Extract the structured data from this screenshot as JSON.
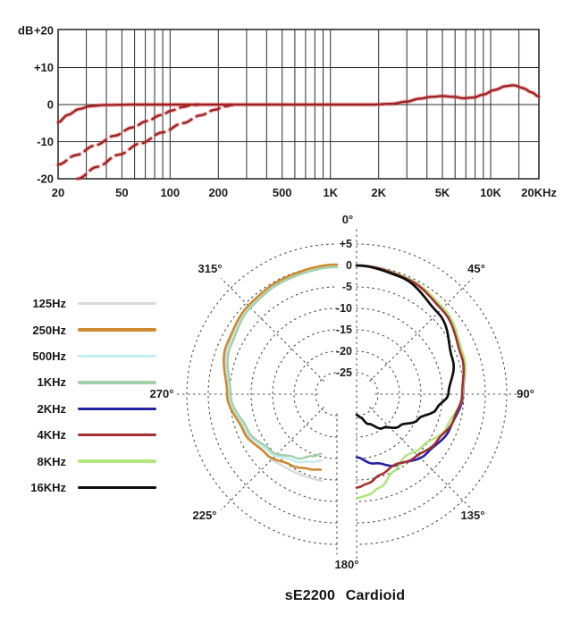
{
  "page": {
    "background": "#ffffff"
  },
  "chart_data": [
    {
      "id": "frequency-response",
      "type": "line",
      "x_scale": "log",
      "x_range_hz": [
        20,
        20000
      ],
      "y_range_db": [
        -20,
        20
      ],
      "grid": true,
      "y_axis_unit_label": "dB",
      "line_color": "#9f2024",
      "y_ticks": [
        {
          "label": "+20",
          "db": 20
        },
        {
          "label": "+10",
          "db": 10
        },
        {
          "label": "0",
          "db": 0
        },
        {
          "label": "-10",
          "db": -10
        },
        {
          "label": "-20",
          "db": -20
        }
      ],
      "x_ticks": [
        {
          "label": "20",
          "hz": 20
        },
        {
          "label": "50",
          "hz": 50
        },
        {
          "label": "100",
          "hz": 100
        },
        {
          "label": "200",
          "hz": 200
        },
        {
          "label": "500",
          "hz": 500
        },
        {
          "label": "1K",
          "hz": 1000
        },
        {
          "label": "2K",
          "hz": 2000
        },
        {
          "label": "5K",
          "hz": 5000
        },
        {
          "label": "10K",
          "hz": 10000
        },
        {
          "label": "20KHz",
          "hz": 20000
        }
      ],
      "x_gridlines_hz": [
        20,
        30,
        40,
        50,
        60,
        70,
        80,
        90,
        100,
        200,
        300,
        400,
        500,
        600,
        700,
        800,
        900,
        1000,
        2000,
        3000,
        4000,
        5000,
        6000,
        7000,
        8000,
        9000,
        10000,
        15000,
        20000
      ],
      "series": [
        {
          "name": "main frequency response",
          "style": "solid",
          "points_hz_db": [
            [
              20,
              -4.8
            ],
            [
              23,
              -2.8
            ],
            [
              27,
              -1.2
            ],
            [
              32,
              -0.4
            ],
            [
              40,
              -0.1
            ],
            [
              60,
              0
            ],
            [
              100,
              0
            ],
            [
              300,
              0
            ],
            [
              700,
              0
            ],
            [
              1200,
              0
            ],
            [
              1800,
              0
            ],
            [
              2400,
              0.2
            ],
            [
              3000,
              0.8
            ],
            [
              3600,
              1.6
            ],
            [
              4300,
              2.1
            ],
            [
              5000,
              2.3
            ],
            [
              5800,
              2.1
            ],
            [
              6800,
              1.7
            ],
            [
              7800,
              1.9
            ],
            [
              9000,
              2.7
            ],
            [
              10500,
              3.9
            ],
            [
              12500,
              5.0
            ],
            [
              14000,
              5.2
            ],
            [
              16000,
              4.4
            ],
            [
              18000,
              3.3
            ],
            [
              20000,
              2.1
            ]
          ]
        },
        {
          "name": "low-cut filter option 1",
          "style": "dashed",
          "points_hz_db": [
            [
              20,
              -16.2
            ],
            [
              26,
              -13.6
            ],
            [
              34,
              -11.0
            ],
            [
              45,
              -8.4
            ],
            [
              58,
              -6.2
            ],
            [
              72,
              -4.4
            ],
            [
              88,
              -2.8
            ],
            [
              103,
              -1.6
            ],
            [
              118,
              -0.7
            ],
            [
              135,
              -0.2
            ],
            [
              150,
              0
            ]
          ]
        },
        {
          "name": "low-cut filter option 2",
          "style": "dashed",
          "points_hz_db": [
            [
              26.5,
              -20
            ],
            [
              35,
              -16.8
            ],
            [
              48,
              -13.5
            ],
            [
              65,
              -10.5
            ],
            [
              90,
              -7.5
            ],
            [
              120,
              -5.0
            ],
            [
              155,
              -2.9
            ],
            [
              190,
              -1.4
            ],
            [
              220,
              -0.5
            ],
            [
              245,
              -0.1
            ]
          ]
        }
      ]
    },
    {
      "id": "polar-pattern",
      "type": "polar",
      "title": "sE2200 Cardioid",
      "rings_db": [
        5,
        0,
        -5,
        -10,
        -15,
        -20,
        -25
      ],
      "ring_labels": [
        "+5",
        "0",
        "-5",
        "-10",
        "-15",
        "-20",
        "-25"
      ],
      "center_db": -30,
      "db_per_ring": 5,
      "angle_labels": [
        {
          "label": "0°",
          "deg": 0
        },
        {
          "label": "45°",
          "deg": 45
        },
        {
          "label": "90°",
          "deg": 90
        },
        {
          "label": "135°",
          "deg": 135
        },
        {
          "label": "180°",
          "deg": 180
        },
        {
          "label": "225°",
          "deg": 225
        },
        {
          "label": "270°",
          "deg": 270
        },
        {
          "label": "315°",
          "deg": 315
        }
      ],
      "legend": [
        {
          "label": "125Hz",
          "color": "#d9d9d9"
        },
        {
          "label": "250Hz",
          "color": "#cd8a31"
        },
        {
          "label": "500Hz",
          "color": "#c3ecf0"
        },
        {
          "label": "1KHz",
          "color": "#a3d0a8"
        },
        {
          "label": "2KHz",
          "color": "#2522a3"
        },
        {
          "label": "4KHz",
          "color": "#a53031"
        },
        {
          "label": "8KHz",
          "color": "#b2e67f"
        },
        {
          "label": "16KHz",
          "color": "#0d0d0d"
        }
      ],
      "series": [
        {
          "name": "125Hz",
          "color": "#d9d9d9",
          "half": "left",
          "width": 2.4,
          "points_deg_db": [
            [
              360,
              0
            ],
            [
              335,
              -0.5
            ],
            [
              315,
              -1.1
            ],
            [
              295,
              -2.2
            ],
            [
              270,
              -4.8
            ],
            [
              248,
              -6.9
            ],
            [
              230,
              -8.3
            ],
            [
              213,
              -9.2
            ],
            [
              200,
              -9.5
            ],
            [
              190,
              -9.5
            ]
          ]
        },
        {
          "name": "500Hz",
          "color": "#c3ecf0",
          "half": "left",
          "width": 2.4,
          "points_deg_db": [
            [
              360,
              -0.2
            ],
            [
              335,
              -0.7
            ],
            [
              315,
              -1.3
            ],
            [
              295,
              -2.5
            ],
            [
              270,
              -5.0
            ],
            [
              248,
              -7.3
            ],
            [
              230,
              -9.2
            ],
            [
              213,
              -11.5
            ],
            [
              200,
              -13.2
            ],
            [
              193,
              -14.2
            ]
          ]
        },
        {
          "name": "1KHz",
          "color": "#a3d0a8",
          "half": "left",
          "width": 2.4,
          "points_deg_db": [
            [
              360,
              -0.4
            ],
            [
              335,
              -0.9
            ],
            [
              315,
              -1.5
            ],
            [
              295,
              -2.8
            ],
            [
              270,
              -5.2
            ],
            [
              248,
              -7.6
            ],
            [
              230,
              -9.7
            ],
            [
              213,
              -12.3
            ],
            [
              201,
              -14.5
            ],
            [
              195,
              -15.6
            ]
          ]
        },
        {
          "name": "250Hz",
          "color": "#cd8a31",
          "half": "left",
          "width": 2.6,
          "points_deg_db": [
            [
              360,
              0.2
            ],
            [
              335,
              -0.3
            ],
            [
              315,
              -0.8
            ],
            [
              295,
              -1.8
            ],
            [
              270,
              -4.4
            ],
            [
              248,
              -6.6
            ],
            [
              230,
              -8.4
            ],
            [
              213,
              -10.3
            ],
            [
              200,
              -11.4
            ],
            [
              192,
              -12.0
            ]
          ]
        },
        {
          "name": "2KHz",
          "color": "#2522a3",
          "half": "right",
          "width": 2.6,
          "points_deg_db": [
            [
              0,
              0
            ],
            [
              25,
              -0.5
            ],
            [
              45,
              -1.6
            ],
            [
              70,
              -3.6
            ],
            [
              90,
              -5.2
            ],
            [
              110,
              -6.8
            ],
            [
              130,
              -8.6
            ],
            [
              150,
              -11.0
            ],
            [
              165,
              -13.3
            ],
            [
              180,
              -15.3
            ]
          ]
        },
        {
          "name": "8KHz",
          "color": "#b2e67f",
          "half": "right",
          "width": 2.6,
          "points_deg_db": [
            [
              0,
              0
            ],
            [
              25,
              -0.5
            ],
            [
              45,
              -1.5
            ],
            [
              70,
              -3.5
            ],
            [
              90,
              -5.3
            ],
            [
              110,
              -7.6
            ],
            [
              128,
              -10.4
            ],
            [
              142,
              -11.6
            ],
            [
              155,
              -10.0
            ],
            [
              166,
              -7.6
            ],
            [
              174,
              -6.3
            ],
            [
              180,
              -5.8
            ]
          ]
        },
        {
          "name": "4KHz",
          "color": "#a53031",
          "half": "right",
          "width": 2.6,
          "points_deg_db": [
            [
              0,
              0
            ],
            [
              25,
              -0.7
            ],
            [
              45,
              -2.0
            ],
            [
              70,
              -4.0
            ],
            [
              90,
              -5.4
            ],
            [
              105,
              -6.6
            ],
            [
              120,
              -8.3
            ],
            [
              138,
              -10.0
            ],
            [
              152,
              -11.3
            ],
            [
              164,
              -10.4
            ],
            [
              173,
              -9.0
            ],
            [
              180,
              -8.2
            ]
          ]
        },
        {
          "name": "16KHz",
          "color": "#0d0d0d",
          "half": "right",
          "width": 2.7,
          "points_deg_db": [
            [
              0,
              0
            ],
            [
              20,
              -0.8
            ],
            [
              45,
              -3.2
            ],
            [
              70,
              -6.2
            ],
            [
              90,
              -8.6
            ],
            [
              100,
              -11.0
            ],
            [
              112,
              -14.5
            ],
            [
              126,
              -17.5
            ],
            [
              142,
              -20.0
            ],
            [
              158,
              -22.5
            ],
            [
              170,
              -24.5
            ],
            [
              180,
              -25.2
            ]
          ]
        }
      ]
    }
  ]
}
